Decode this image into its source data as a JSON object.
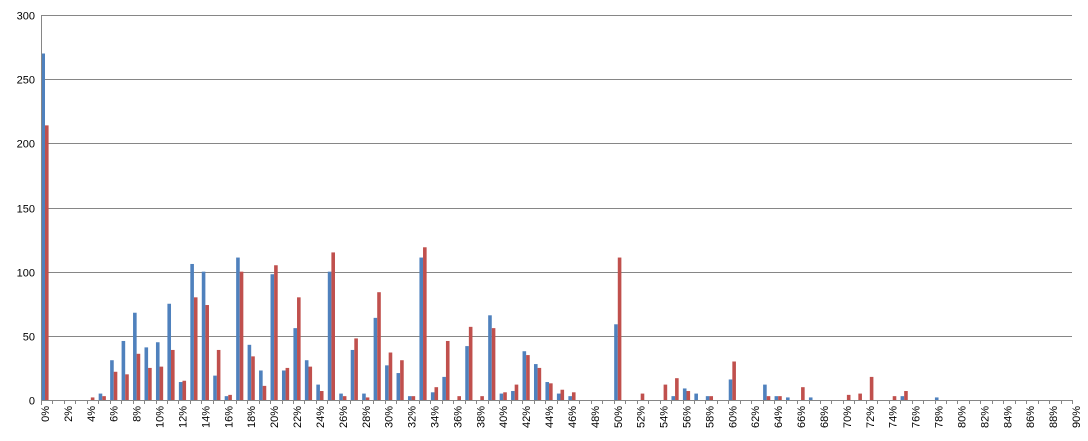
{
  "chart_data": {
    "type": "bar",
    "title": "",
    "xlabel": "",
    "ylabel": "",
    "ylim": [
      0,
      300
    ],
    "yticks": [
      0,
      50,
      100,
      150,
      200,
      250,
      300
    ],
    "grid": true,
    "legend": "none",
    "categories": [
      "0%",
      "1%",
      "2%",
      "3%",
      "4%",
      "5%",
      "6%",
      "7%",
      "8%",
      "9%",
      "10%",
      "11%",
      "12%",
      "13%",
      "14%",
      "15%",
      "16%",
      "17%",
      "18%",
      "19%",
      "20%",
      "21%",
      "22%",
      "23%",
      "24%",
      "25%",
      "26%",
      "27%",
      "28%",
      "29%",
      "30%",
      "31%",
      "32%",
      "33%",
      "34%",
      "35%",
      "36%",
      "37%",
      "38%",
      "39%",
      "40%",
      "41%",
      "42%",
      "43%",
      "44%",
      "45%",
      "46%",
      "47%",
      "48%",
      "49%",
      "50%",
      "51%",
      "52%",
      "53%",
      "54%",
      "55%",
      "56%",
      "57%",
      "58%",
      "59%",
      "60%",
      "61%",
      "62%",
      "63%",
      "64%",
      "65%",
      "66%",
      "67%",
      "68%",
      "69%",
      "70%",
      "71%",
      "72%",
      "73%",
      "74%",
      "75%",
      "76%",
      "77%",
      "78%",
      "79%",
      "80%",
      "81%",
      "82%",
      "83%",
      "84%",
      "85%",
      "86%",
      "87%",
      "88%",
      "89%",
      "90%"
    ],
    "tick_labels": [
      "0%",
      "2%",
      "4%",
      "6%",
      "8%",
      "10%",
      "12%",
      "14%",
      "16%",
      "18%",
      "20%",
      "22%",
      "24%",
      "26%",
      "28%",
      "30%",
      "32%",
      "34%",
      "36%",
      "38%",
      "40%",
      "42%",
      "44%",
      "46%",
      "48%",
      "50%",
      "52%",
      "54%",
      "56%",
      "58%",
      "60%",
      "62%",
      "64%",
      "66%",
      "68%",
      "70%",
      "72%",
      "74%",
      "76%",
      "78%",
      "80%",
      "82%",
      "84%",
      "86%",
      "88%",
      "90%"
    ],
    "series": [
      {
        "color": "#4f81bd",
        "values": [
          270,
          0,
          0,
          0,
          0,
          5,
          31,
          46,
          68,
          41,
          45,
          75,
          14,
          106,
          100,
          19,
          3,
          111,
          43,
          23,
          98,
          23,
          56,
          31,
          12,
          100,
          5,
          39,
          5,
          64,
          27,
          21,
          3,
          111,
          6,
          18,
          0,
          42,
          0,
          66,
          5,
          7,
          38,
          28,
          14,
          5,
          3,
          0,
          0,
          0,
          59,
          0,
          0,
          0,
          0,
          3,
          9,
          5,
          3,
          0,
          16,
          0,
          0,
          12,
          3,
          2,
          0,
          2,
          0,
          0,
          0,
          0,
          0,
          0,
          0,
          3,
          0,
          0,
          2,
          0,
          0,
          0,
          0,
          0,
          0,
          0,
          0,
          0,
          0,
          0,
          0
        ]
      },
      {
        "color": "#c0504d",
        "values": [
          214,
          0,
          0,
          0,
          2,
          3,
          22,
          20,
          36,
          25,
          26,
          39,
          15,
          80,
          74,
          39,
          4,
          100,
          34,
          11,
          105,
          25,
          80,
          26,
          7,
          115,
          3,
          48,
          2,
          84,
          37,
          31,
          3,
          119,
          10,
          46,
          3,
          57,
          3,
          56,
          6,
          12,
          35,
          25,
          13,
          8,
          6,
          0,
          0,
          0,
          111,
          0,
          5,
          0,
          12,
          17,
          7,
          0,
          3,
          0,
          30,
          0,
          0,
          3,
          3,
          0,
          10,
          0,
          0,
          0,
          4,
          5,
          18,
          0,
          3,
          7,
          0,
          0,
          0,
          0,
          0,
          0,
          0,
          0,
          0,
          0,
          0,
          0,
          0,
          0,
          0
        ]
      }
    ]
  }
}
